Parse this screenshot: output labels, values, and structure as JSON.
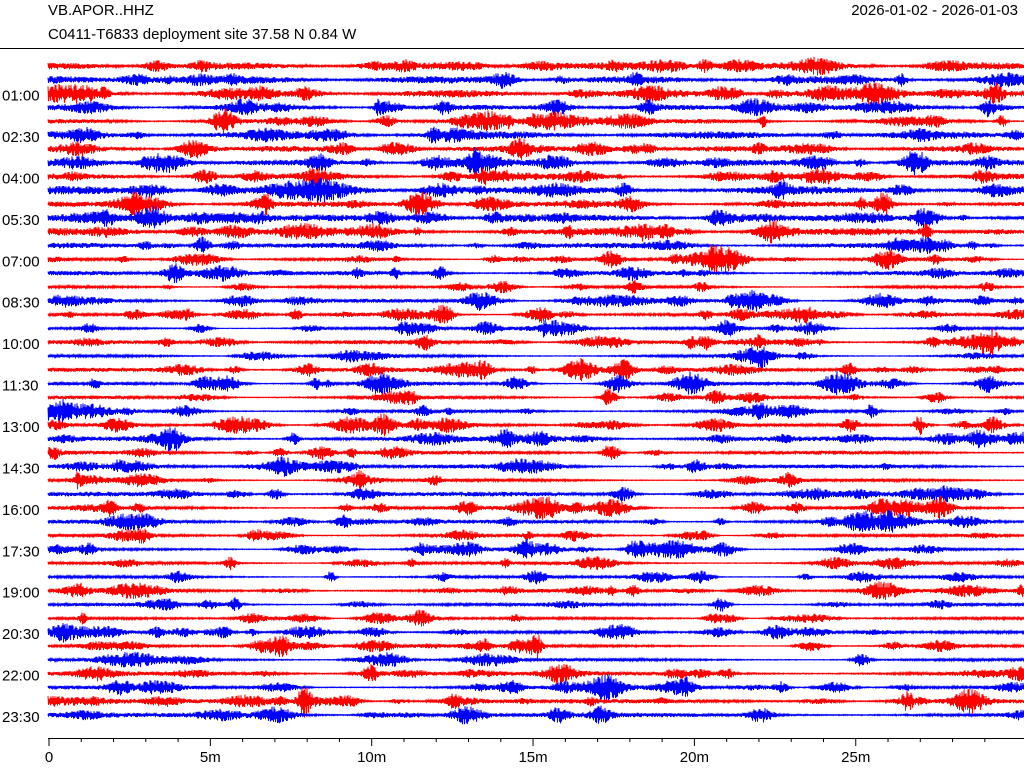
{
  "chart_data": {
    "type": "helicorder",
    "title": "VB.APOR..HHZ",
    "subtitle": "C0411-T6833 deployment site  37.58 N 0.84 W",
    "date_range": "2026-01-02 - 2026-01-03",
    "colors": [
      "#ff0000",
      "#0000ff"
    ],
    "xlim": [
      0,
      30
    ],
    "xticks": [
      0,
      {
        "value": 5,
        "label": "5m"
      },
      {
        "value": 10,
        "label": "10m"
      },
      {
        "value": 15,
        "label": "15m"
      },
      {
        "value": 20,
        "label": "20m"
      },
      {
        "value": 25,
        "label": "25m"
      }
    ],
    "ylim": [
      0,
      23.5
    ],
    "yticks": [
      {
        "value": 1,
        "label": "01:00"
      },
      {
        "value": 2.5,
        "label": "02:30"
      },
      {
        "value": 4,
        "label": "04:00"
      },
      {
        "value": 5.5,
        "label": "05:30"
      },
      {
        "value": 7,
        "label": "07:00"
      },
      {
        "value": 8.5,
        "label": "08:30"
      },
      {
        "value": 10,
        "label": "10:00"
      },
      {
        "value": 11.5,
        "label": "11:30"
      },
      {
        "value": 13,
        "label": "13:00"
      },
      {
        "value": 14.5,
        "label": "14:30"
      },
      {
        "value": 16,
        "label": "16:00"
      },
      {
        "value": 17.5,
        "label": "17:30"
      },
      {
        "value": 19,
        "label": "19:00"
      },
      {
        "value": 20.5,
        "label": "20:30"
      },
      {
        "value": 22,
        "label": "22:00"
      },
      {
        "value": 23.5,
        "label": "23:30"
      }
    ]
  }
}
